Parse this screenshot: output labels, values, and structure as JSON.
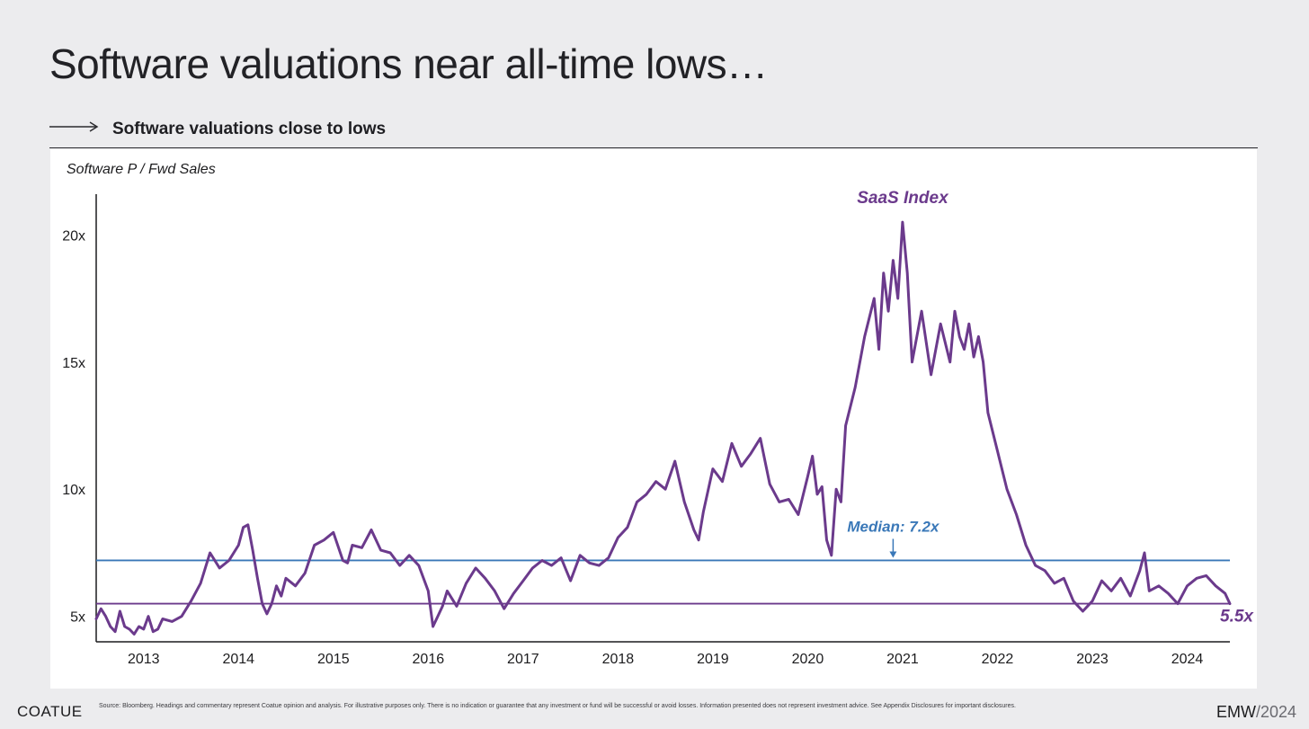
{
  "header": {
    "title": "Software valuations near all-time lows…",
    "subtitle": "Software valuations close to lows",
    "arrow_icon": "long-right-arrow-icon"
  },
  "chart_data": {
    "type": "line",
    "ylabel": "Software P / Fwd Sales",
    "ylim": [
      4,
      21.6
    ],
    "xlim": [
      2012.5,
      2024.45
    ],
    "yticks": [
      5,
      10,
      15,
      20
    ],
    "ytick_labels": [
      "5x",
      "10x",
      "15x",
      "20x"
    ],
    "xticks": [
      2013,
      2014,
      2015,
      2016,
      2017,
      2018,
      2019,
      2020,
      2021,
      2022,
      2023,
      2024
    ],
    "xtick_labels": [
      "2013",
      "2014",
      "2015",
      "2016",
      "2017",
      "2018",
      "2019",
      "2020",
      "2021",
      "2022",
      "2023",
      "2024"
    ],
    "grid": false,
    "series": [
      {
        "name": "SaaS Index",
        "color": "#6b3a8c",
        "x": [
          2012.5,
          2012.55,
          2012.6,
          2012.65,
          2012.7,
          2012.75,
          2012.8,
          2012.85,
          2012.9,
          2012.95,
          2013.0,
          2013.05,
          2013.1,
          2013.15,
          2013.2,
          2013.3,
          2013.4,
          2013.5,
          2013.6,
          2013.7,
          2013.8,
          2013.9,
          2014.0,
          2014.05,
          2014.1,
          2014.15,
          2014.2,
          2014.25,
          2014.3,
          2014.35,
          2014.4,
          2014.45,
          2014.5,
          2014.6,
          2014.7,
          2014.8,
          2014.9,
          2015.0,
          2015.1,
          2015.15,
          2015.2,
          2015.3,
          2015.4,
          2015.5,
          2015.6,
          2015.7,
          2015.8,
          2015.9,
          2016.0,
          2016.05,
          2016.1,
          2016.15,
          2016.2,
          2016.3,
          2016.4,
          2016.5,
          2016.6,
          2016.7,
          2016.8,
          2016.9,
          2017.0,
          2017.1,
          2017.2,
          2017.3,
          2017.4,
          2017.5,
          2017.6,
          2017.7,
          2017.8,
          2017.9,
          2018.0,
          2018.1,
          2018.2,
          2018.3,
          2018.4,
          2018.5,
          2018.6,
          2018.7,
          2018.8,
          2018.85,
          2018.9,
          2019.0,
          2019.1,
          2019.2,
          2019.3,
          2019.4,
          2019.5,
          2019.6,
          2019.7,
          2019.8,
          2019.9,
          2020.0,
          2020.05,
          2020.1,
          2020.15,
          2020.2,
          2020.25,
          2020.3,
          2020.35,
          2020.4,
          2020.5,
          2020.6,
          2020.7,
          2020.75,
          2020.8,
          2020.85,
          2020.9,
          2020.95,
          2021.0,
          2021.05,
          2021.1,
          2021.15,
          2021.2,
          2021.3,
          2021.4,
          2021.5,
          2021.55,
          2021.6,
          2021.65,
          2021.7,
          2021.75,
          2021.8,
          2021.85,
          2021.9,
          2022.0,
          2022.1,
          2022.2,
          2022.3,
          2022.4,
          2022.5,
          2022.6,
          2022.7,
          2022.8,
          2022.9,
          2023.0,
          2023.1,
          2023.2,
          2023.3,
          2023.4,
          2023.5,
          2023.55,
          2023.6,
          2023.7,
          2023.8,
          2023.9,
          2024.0,
          2024.1,
          2024.2,
          2024.3,
          2024.4,
          2024.45
        ],
        "y": [
          4.9,
          5.3,
          5.0,
          4.6,
          4.4,
          5.2,
          4.6,
          4.5,
          4.3,
          4.6,
          4.5,
          5.0,
          4.4,
          4.5,
          4.9,
          4.8,
          5.0,
          5.6,
          6.3,
          7.5,
          6.9,
          7.2,
          7.8,
          8.5,
          8.6,
          7.6,
          6.5,
          5.5,
          5.1,
          5.5,
          6.2,
          5.8,
          6.5,
          6.2,
          6.7,
          7.8,
          8.0,
          8.3,
          7.2,
          7.1,
          7.8,
          7.7,
          8.4,
          7.6,
          7.5,
          7.0,
          7.4,
          7.0,
          6.0,
          4.6,
          5.0,
          5.4,
          6.0,
          5.4,
          6.3,
          6.9,
          6.5,
          6.0,
          5.3,
          5.9,
          6.4,
          6.9,
          7.2,
          7.0,
          7.3,
          6.4,
          7.4,
          7.1,
          7.0,
          7.3,
          8.1,
          8.5,
          9.5,
          9.8,
          10.3,
          10.0,
          11.1,
          9.5,
          8.4,
          8.0,
          9.1,
          10.8,
          10.3,
          11.8,
          10.9,
          11.4,
          12.0,
          10.2,
          9.5,
          9.6,
          9.0,
          10.5,
          11.3,
          9.8,
          10.1,
          8.0,
          7.4,
          10.0,
          9.5,
          12.5,
          14.0,
          16.0,
          17.5,
          15.5,
          18.5,
          17.0,
          19.0,
          17.5,
          20.5,
          18.5,
          15.0,
          16.0,
          17.0,
          14.5,
          16.5,
          15.0,
          17.0,
          16.0,
          15.5,
          16.5,
          15.2,
          16.0,
          15.0,
          13.0,
          11.5,
          10.0,
          9.0,
          7.8,
          7.0,
          6.8,
          6.3,
          6.5,
          5.6,
          5.2,
          5.6,
          6.4,
          6.0,
          6.5,
          5.8,
          6.8,
          7.5,
          6.0,
          6.2,
          5.9,
          5.5,
          6.2,
          6.5,
          6.6,
          6.2,
          5.9,
          5.5
        ]
      }
    ],
    "series_label": "SaaS Index",
    "reference_lines": [
      {
        "label": "Median: 7.2x",
        "y": 7.2,
        "color": "#3a78b8"
      },
      {
        "label": "5.5x",
        "y": 5.5,
        "color": "#6b3a8c"
      }
    ]
  },
  "footer": {
    "logo": "COATUE",
    "disclaimer": "Source: Bloomberg. Headings and commentary represent Coatue opinion and analysis. For illustrative purposes only. There is no indication or guarantee that any investment or fund will be successful or avoid losses. Information presented does not represent investment advice. See Appendix Disclosures for important disclosures.",
    "event_prefix": "EMW",
    "event_year": "/2024"
  }
}
